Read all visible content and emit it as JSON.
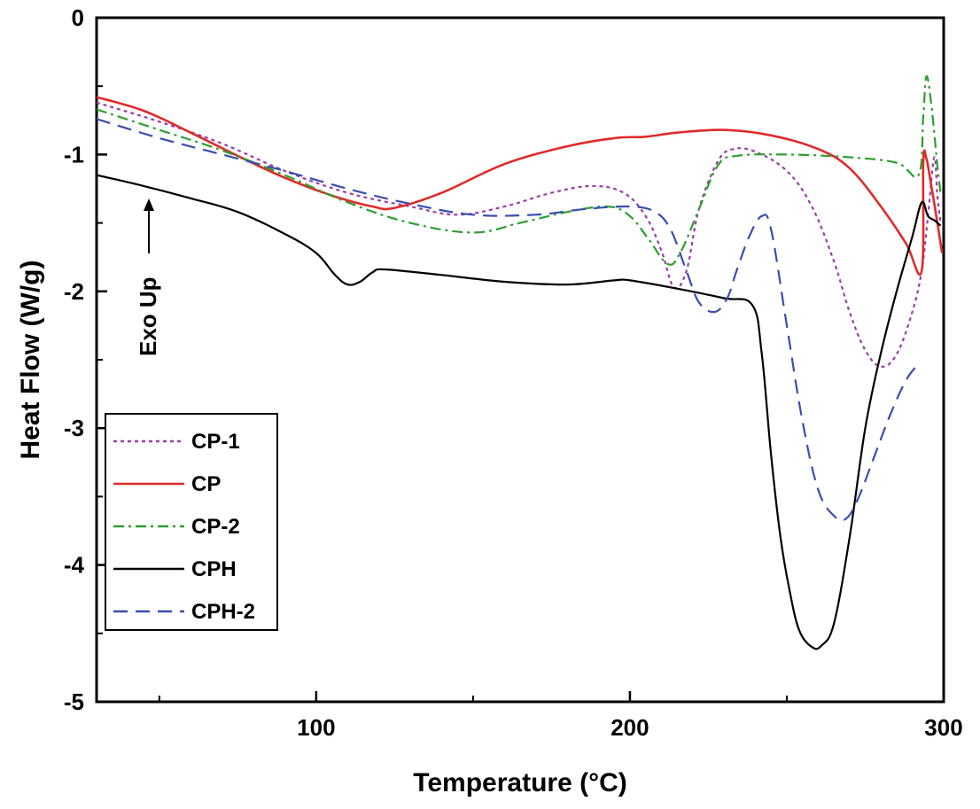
{
  "chart_data": {
    "type": "line",
    "title": "",
    "xlabel": "Temperature (°C)",
    "ylabel": "Heat Flow (W/g)",
    "xlim": [
      30,
      300
    ],
    "ylim": [
      -5,
      0
    ],
    "x_ticks": [
      100,
      200,
      300
    ],
    "y_ticks": [
      0,
      -1,
      -2,
      -3,
      -4,
      -5
    ],
    "x_minor_ticks": [
      50,
      150,
      250
    ],
    "y_minor_ticks": [
      -0.5,
      -1.5,
      -2.5,
      -3.5,
      -4.5
    ],
    "grid": false,
    "legend_position": "bottom-left",
    "annotation": "Exo Up",
    "series": [
      {
        "name": "CP-1",
        "color": "#9b3fa8",
        "dash": "dotted",
        "points": [
          [
            30,
            -0.62
          ],
          [
            50,
            -0.76
          ],
          [
            70,
            -0.92
          ],
          [
            90,
            -1.12
          ],
          [
            110,
            -1.28
          ],
          [
            130,
            -1.38
          ],
          [
            145,
            -1.44
          ],
          [
            160,
            -1.38
          ],
          [
            175,
            -1.28
          ],
          [
            188,
            -1.23
          ],
          [
            198,
            -1.28
          ],
          [
            205,
            -1.45
          ],
          [
            210,
            -1.7
          ],
          [
            214,
            -1.97
          ],
          [
            218,
            -1.85
          ],
          [
            222,
            -1.4
          ],
          [
            228,
            -1.05
          ],
          [
            233,
            -0.96
          ],
          [
            240,
            -0.98
          ],
          [
            250,
            -1.12
          ],
          [
            258,
            -1.38
          ],
          [
            265,
            -1.78
          ],
          [
            270,
            -2.15
          ],
          [
            275,
            -2.43
          ],
          [
            280,
            -2.55
          ],
          [
            285,
            -2.46
          ],
          [
            290,
            -2.15
          ],
          [
            293,
            -1.85
          ],
          [
            295,
            -1.45
          ],
          [
            297,
            -1.02
          ],
          [
            298,
            -1.3
          ],
          [
            299,
            -1.5
          ]
        ]
      },
      {
        "name": "CP",
        "color": "#e02a2a",
        "dash": "solid",
        "points": [
          [
            30,
            -0.58
          ],
          [
            45,
            -0.68
          ],
          [
            60,
            -0.84
          ],
          [
            75,
            -1.01
          ],
          [
            90,
            -1.17
          ],
          [
            105,
            -1.3
          ],
          [
            118,
            -1.38
          ],
          [
            125,
            -1.39
          ],
          [
            140,
            -1.28
          ],
          [
            160,
            -1.07
          ],
          [
            180,
            -0.94
          ],
          [
            195,
            -0.88
          ],
          [
            205,
            -0.87
          ],
          [
            215,
            -0.84
          ],
          [
            230,
            -0.82
          ],
          [
            245,
            -0.86
          ],
          [
            260,
            -0.96
          ],
          [
            270,
            -1.1
          ],
          [
            280,
            -1.38
          ],
          [
            288,
            -1.65
          ],
          [
            293,
            -1.85
          ],
          [
            293.5,
            -1.05
          ],
          [
            294.5,
            -1.03
          ],
          [
            296,
            -1.22
          ],
          [
            298,
            -1.5
          ],
          [
            299.5,
            -1.72
          ]
        ]
      },
      {
        "name": "CP-2",
        "color": "#2e9e2e",
        "dash": "dashdot",
        "points": [
          [
            30,
            -0.67
          ],
          [
            50,
            -0.82
          ],
          [
            70,
            -0.97
          ],
          [
            90,
            -1.15
          ],
          [
            110,
            -1.35
          ],
          [
            130,
            -1.5
          ],
          [
            150,
            -1.57
          ],
          [
            165,
            -1.5
          ],
          [
            180,
            -1.42
          ],
          [
            193,
            -1.38
          ],
          [
            200,
            -1.45
          ],
          [
            206,
            -1.62
          ],
          [
            212,
            -1.8
          ],
          [
            216,
            -1.72
          ],
          [
            222,
            -1.4
          ],
          [
            228,
            -1.08
          ],
          [
            234,
            -1.01
          ],
          [
            250,
            -1.0
          ],
          [
            270,
            -1.02
          ],
          [
            285,
            -1.06
          ],
          [
            292,
            -1.15
          ],
          [
            293.5,
            -0.72
          ],
          [
            294.5,
            -0.43
          ],
          [
            296,
            -0.62
          ],
          [
            298,
            -1.08
          ],
          [
            299,
            -1.28
          ]
        ]
      },
      {
        "name": "CPH",
        "color": "#000000",
        "dash": "solid",
        "points": [
          [
            30,
            -1.15
          ],
          [
            45,
            -1.23
          ],
          [
            60,
            -1.32
          ],
          [
            75,
            -1.42
          ],
          [
            90,
            -1.58
          ],
          [
            100,
            -1.72
          ],
          [
            106,
            -1.88
          ],
          [
            110,
            -1.95
          ],
          [
            114,
            -1.93
          ],
          [
            118,
            -1.86
          ],
          [
            122,
            -1.84
          ],
          [
            140,
            -1.88
          ],
          [
            160,
            -1.93
          ],
          [
            180,
            -1.95
          ],
          [
            195,
            -1.92
          ],
          [
            200,
            -1.92
          ],
          [
            215,
            -1.98
          ],
          [
            230,
            -2.05
          ],
          [
            239,
            -2.1
          ],
          [
            242,
            -2.45
          ],
          [
            245,
            -3.2
          ],
          [
            248,
            -3.8
          ],
          [
            251,
            -4.2
          ],
          [
            254,
            -4.48
          ],
          [
            258,
            -4.6
          ],
          [
            261,
            -4.59
          ],
          [
            265,
            -4.43
          ],
          [
            270,
            -3.8
          ],
          [
            275,
            -3.0
          ],
          [
            280,
            -2.45
          ],
          [
            285,
            -2.0
          ],
          [
            290,
            -1.6
          ],
          [
            293,
            -1.35
          ],
          [
            295,
            -1.45
          ],
          [
            297,
            -1.48
          ],
          [
            299,
            -1.52
          ]
        ]
      },
      {
        "name": "CPH-2",
        "color": "#3a4db0",
        "dash": "dashed",
        "points": [
          [
            30,
            -0.74
          ],
          [
            50,
            -0.88
          ],
          [
            70,
            -1.0
          ],
          [
            90,
            -1.12
          ],
          [
            110,
            -1.25
          ],
          [
            130,
            -1.36
          ],
          [
            150,
            -1.44
          ],
          [
            170,
            -1.44
          ],
          [
            185,
            -1.4
          ],
          [
            200,
            -1.38
          ],
          [
            208,
            -1.42
          ],
          [
            213,
            -1.55
          ],
          [
            218,
            -1.85
          ],
          [
            222,
            -2.08
          ],
          [
            227,
            -2.15
          ],
          [
            231,
            -2.05
          ],
          [
            234,
            -1.85
          ],
          [
            238,
            -1.6
          ],
          [
            242,
            -1.45
          ],
          [
            245,
            -1.55
          ],
          [
            250,
            -2.25
          ],
          [
            255,
            -2.95
          ],
          [
            260,
            -3.45
          ],
          [
            265,
            -3.64
          ],
          [
            269,
            -3.66
          ],
          [
            273,
            -3.5
          ],
          [
            278,
            -3.2
          ],
          [
            283,
            -2.9
          ],
          [
            288,
            -2.65
          ],
          [
            292,
            -2.53
          ]
        ]
      }
    ]
  }
}
